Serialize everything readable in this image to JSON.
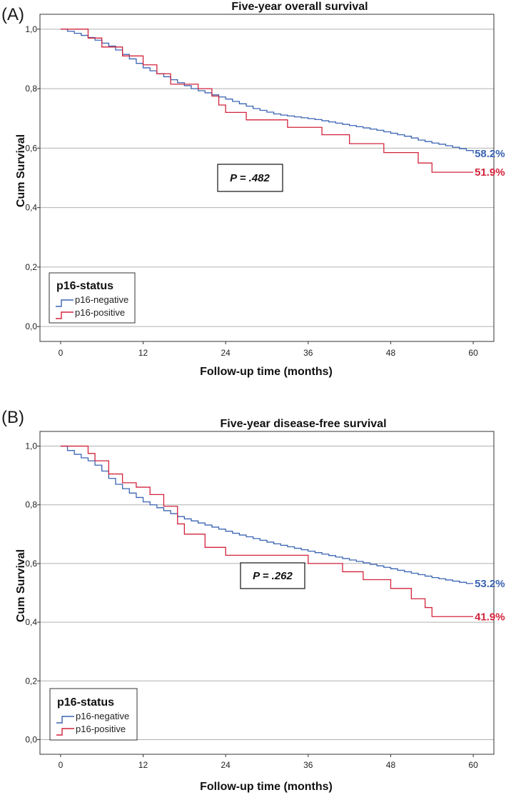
{
  "colors": {
    "negative": "#3a64b4",
    "positive": "#d2233c",
    "grid": "#b0b0b0",
    "frame": "#333333"
  },
  "chart_data": [
    {
      "panel": "(A)",
      "type": "line",
      "step": true,
      "title": "Five-year overall survival",
      "xlabel": "Follow-up time (months)",
      "ylabel": "Cum Survival",
      "xlim": [
        -3,
        63
      ],
      "ylim": [
        -0.05,
        1.05
      ],
      "xticks": [
        "0",
        "12",
        "24",
        "36",
        "48",
        "60"
      ],
      "yticks": [
        "0,0",
        "0,2",
        "0,4",
        "0,6",
        "0,8",
        "1,0"
      ],
      "grid": true,
      "p_value": "P = .482",
      "legend": {
        "title": "p16-status",
        "placement": "bottom-left"
      },
      "series": [
        {
          "name": "p16-negative",
          "color": "negative",
          "end_label": "58.2%",
          "x": [
            0,
            1,
            2,
            3,
            4,
            5,
            6,
            7,
            8,
            9,
            10,
            11,
            12,
            13,
            14,
            15,
            16,
            17,
            18,
            19,
            20,
            21,
            22,
            23,
            24,
            25,
            26,
            27,
            28,
            29,
            30,
            31,
            32,
            33,
            34,
            35,
            36,
            37,
            38,
            39,
            40,
            41,
            42,
            43,
            44,
            45,
            46,
            47,
            48,
            49,
            50,
            51,
            52,
            53,
            54,
            55,
            56,
            57,
            58,
            59,
            60
          ],
          "y": [
            1.0,
            0.993,
            0.986,
            0.979,
            0.972,
            0.963,
            0.953,
            0.943,
            0.93,
            0.915,
            0.9,
            0.885,
            0.87,
            0.86,
            0.85,
            0.84,
            0.83,
            0.82,
            0.81,
            0.8,
            0.793,
            0.786,
            0.779,
            0.772,
            0.765,
            0.757,
            0.749,
            0.741,
            0.733,
            0.727,
            0.721,
            0.715,
            0.711,
            0.708,
            0.705,
            0.702,
            0.699,
            0.696,
            0.692,
            0.688,
            0.684,
            0.68,
            0.676,
            0.672,
            0.668,
            0.664,
            0.66,
            0.655,
            0.65,
            0.645,
            0.64,
            0.634,
            0.627,
            0.622,
            0.617,
            0.613,
            0.608,
            0.603,
            0.598,
            0.592,
            0.582
          ]
        },
        {
          "name": "p16-positive",
          "color": "positive",
          "end_label": "51.9%",
          "x": [
            0,
            4,
            6,
            9,
            12,
            14,
            16,
            20,
            22,
            23,
            24,
            27,
            33,
            38,
            42,
            47,
            52,
            54,
            60
          ],
          "y": [
            1.0,
            0.97,
            0.94,
            0.91,
            0.88,
            0.85,
            0.815,
            0.8,
            0.775,
            0.745,
            0.72,
            0.695,
            0.67,
            0.645,
            0.615,
            0.585,
            0.55,
            0.519,
            0.519
          ]
        }
      ]
    },
    {
      "panel": "(B)",
      "type": "line",
      "step": true,
      "title": "Five-year disease-free survival",
      "xlabel": "Follow-up time (months)",
      "ylabel": "Cum Survival",
      "xlim": [
        -3,
        63
      ],
      "ylim": [
        -0.05,
        1.05
      ],
      "xticks": [
        "0",
        "12",
        "24",
        "36",
        "48",
        "60"
      ],
      "yticks": [
        "0,0",
        "0,2",
        "0,4",
        "0,6",
        "0,8",
        "1,0"
      ],
      "grid": true,
      "p_value": "P = .262",
      "legend": {
        "title": "p16-status",
        "placement": "bottom-left"
      },
      "series": [
        {
          "name": "p16-negative",
          "color": "negative",
          "end_label": "53.2%",
          "x": [
            0,
            1,
            2,
            3,
            4,
            5,
            6,
            7,
            8,
            9,
            10,
            11,
            12,
            13,
            14,
            15,
            16,
            17,
            18,
            19,
            20,
            21,
            22,
            23,
            24,
            25,
            26,
            27,
            28,
            29,
            30,
            31,
            32,
            33,
            34,
            35,
            36,
            37,
            38,
            39,
            40,
            41,
            42,
            43,
            44,
            45,
            46,
            47,
            48,
            49,
            50,
            51,
            52,
            53,
            54,
            55,
            56,
            57,
            58,
            59,
            60
          ],
          "y": [
            1.0,
            0.985,
            0.972,
            0.96,
            0.95,
            0.935,
            0.915,
            0.89,
            0.87,
            0.855,
            0.84,
            0.825,
            0.81,
            0.8,
            0.79,
            0.78,
            0.77,
            0.76,
            0.752,
            0.745,
            0.738,
            0.731,
            0.724,
            0.717,
            0.71,
            0.703,
            0.697,
            0.691,
            0.685,
            0.679,
            0.673,
            0.667,
            0.662,
            0.657,
            0.652,
            0.647,
            0.642,
            0.637,
            0.632,
            0.627,
            0.622,
            0.617,
            0.612,
            0.607,
            0.602,
            0.597,
            0.592,
            0.587,
            0.582,
            0.577,
            0.572,
            0.567,
            0.562,
            0.557,
            0.552,
            0.548,
            0.544,
            0.54,
            0.536,
            0.532,
            0.532
          ]
        },
        {
          "name": "p16-positive",
          "color": "positive",
          "end_label": "41.9%",
          "x": [
            0,
            4,
            5,
            7,
            9,
            11,
            13,
            15,
            17,
            18,
            21,
            24,
            33,
            36,
            41,
            44,
            48,
            51,
            53,
            54,
            60
          ],
          "y": [
            1.0,
            0.975,
            0.95,
            0.905,
            0.875,
            0.86,
            0.835,
            0.795,
            0.735,
            0.7,
            0.655,
            0.628,
            0.628,
            0.6,
            0.572,
            0.545,
            0.515,
            0.48,
            0.45,
            0.419,
            0.419
          ]
        }
      ]
    }
  ]
}
